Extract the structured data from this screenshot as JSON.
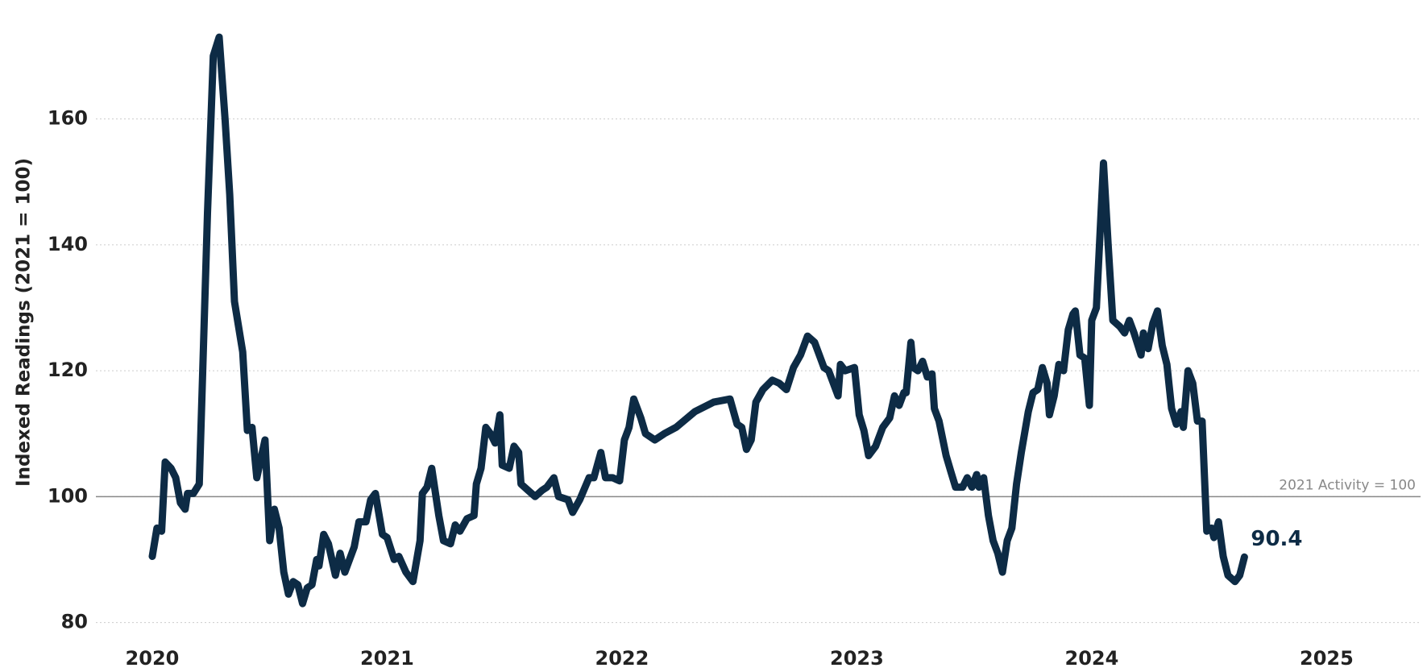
{
  "chart_data": {
    "type": "line",
    "y_label": "Indexed Readings (2021 = 100)",
    "x": [
      2020.0,
      2020.02,
      2020.04,
      2020.055,
      2020.08,
      2020.1,
      2020.12,
      2020.14,
      2020.15,
      2020.175,
      2020.2,
      2020.215,
      2020.235,
      2020.26,
      2020.285,
      2020.31,
      2020.33,
      2020.35,
      2020.385,
      2020.405,
      2020.425,
      2020.445,
      2020.48,
      2020.5,
      2020.52,
      2020.54,
      2020.56,
      2020.58,
      2020.6,
      2020.62,
      2020.64,
      2020.66,
      2020.68,
      2020.7,
      2020.71,
      2020.73,
      2020.75,
      2020.78,
      2020.8,
      2020.82,
      2020.86,
      2020.88,
      2020.91,
      2020.93,
      2020.95,
      2020.98,
      2021.0,
      2021.03,
      2021.05,
      2021.08,
      2021.11,
      2021.14,
      2021.15,
      2021.17,
      2021.19,
      2021.22,
      2021.24,
      2021.27,
      2021.29,
      2021.31,
      2021.34,
      2021.37,
      2021.38,
      2021.4,
      2021.42,
      2021.44,
      2021.46,
      2021.48,
      2021.49,
      2021.52,
      2021.54,
      2021.56,
      2021.57,
      2021.6,
      2021.63,
      2021.66,
      2021.68,
      2021.71,
      2021.73,
      2021.77,
      2021.79,
      2021.82,
      2021.86,
      2021.88,
      2021.91,
      2021.93,
      2021.96,
      2021.99,
      2022.01,
      2022.03,
      2022.05,
      2022.08,
      2022.1,
      2022.14,
      2022.18,
      2022.23,
      2022.31,
      2022.39,
      2022.46,
      2022.49,
      2022.51,
      2022.53,
      2022.55,
      2022.57,
      2022.6,
      2022.64,
      2022.67,
      2022.7,
      2022.73,
      2022.76,
      2022.79,
      2022.82,
      2022.86,
      2022.88,
      2022.92,
      2022.93,
      2022.95,
      2022.99,
      2023.01,
      2023.03,
      2023.05,
      2023.08,
      2023.11,
      2023.14,
      2023.16,
      2023.18,
      2023.2,
      2023.21,
      2023.23,
      2023.24,
      2023.26,
      2023.28,
      2023.3,
      2023.32,
      2023.33,
      2023.35,
      2023.38,
      2023.4,
      2023.42,
      2023.45,
      2023.47,
      2023.49,
      2023.51,
      2023.52,
      2023.54,
      2023.56,
      2023.58,
      2023.6,
      2023.62,
      2023.64,
      2023.66,
      2023.68,
      2023.7,
      2023.73,
      2023.75,
      2023.77,
      2023.79,
      2023.81,
      2023.82,
      2023.84,
      2023.86,
      2023.88,
      2023.9,
      2023.92,
      2023.93,
      2023.95,
      2023.97,
      2023.99,
      2024.0,
      2024.02,
      2024.05,
      2024.07,
      2024.09,
      2024.12,
      2024.14,
      2024.16,
      2024.18,
      2024.21,
      2024.22,
      2024.24,
      2024.26,
      2024.28,
      2024.3,
      2024.32,
      2024.34,
      2024.36,
      2024.38,
      2024.39,
      2024.41,
      2024.43,
      2024.45,
      2024.47,
      2024.49,
      2024.51,
      2024.52,
      2024.54,
      2024.56,
      2024.58,
      2024.61,
      2024.63,
      2024.65
    ],
    "series": [
      {
        "color": "#0d2b45",
        "values": [
          90.5,
          95,
          94.5,
          105.5,
          104.5,
          103,
          99,
          98,
          100.5,
          100.5,
          102,
          120,
          145,
          170,
          173,
          160,
          148,
          131,
          123,
          110.5,
          111,
          103,
          109,
          93,
          98,
          95,
          88,
          84.5,
          86.5,
          86,
          83,
          85.5,
          86,
          90,
          89,
          94,
          92.5,
          87.5,
          91,
          88,
          92,
          96,
          96,
          99.5,
          100.5,
          94,
          93.5,
          90,
          90.5,
          88,
          86.5,
          93,
          100.5,
          101.5,
          104.5,
          97,
          93,
          92.5,
          95.5,
          94.5,
          96.5,
          97,
          102,
          104.5,
          111,
          110,
          108.5,
          113,
          105,
          104.5,
          108,
          107,
          102,
          101,
          100,
          101,
          101.5,
          103,
          100,
          99.5,
          97.5,
          99.5,
          103,
          103,
          107,
          103,
          103,
          102.5,
          109,
          111,
          115.5,
          112.5,
          110,
          109,
          110,
          111,
          113.5,
          115,
          115.5,
          111.5,
          111,
          107.5,
          109,
          115,
          117,
          118.5,
          118,
          117,
          120.5,
          122.5,
          125.5,
          124.5,
          120.5,
          120,
          116,
          121,
          120,
          120.5,
          113,
          110.5,
          106.5,
          108,
          111,
          112.5,
          116,
          114.5,
          116.5,
          116.5,
          124.5,
          120.5,
          120,
          121.5,
          119,
          119.5,
          114,
          112,
          106.5,
          104,
          101.5,
          101.5,
          103,
          101.5,
          103.5,
          101.5,
          103,
          97,
          93,
          91,
          88,
          93,
          95,
          102,
          107,
          113.5,
          116.5,
          117,
          120.5,
          118,
          113,
          116,
          121,
          120,
          126.5,
          129,
          129.5,
          122.5,
          122,
          114.5,
          128,
          130,
          153,
          140,
          128,
          127,
          126,
          128,
          126,
          122.5,
          126,
          123.5,
          127.5,
          129.5,
          124,
          121,
          114,
          111.5,
          113.5,
          111,
          120,
          118,
          112,
          112,
          94.5,
          95,
          93.5,
          96,
          90.5,
          87.5,
          86.5,
          87.5,
          90.4
        ]
      }
    ],
    "xlim": [
      2019.76,
      2025.4
    ],
    "xticks": [
      2020,
      2021,
      2022,
      2023,
      2024,
      2025
    ],
    "ylim": [
      77,
      178
    ],
    "yticks": [
      80,
      100,
      120,
      140,
      160
    ],
    "grid": true,
    "reference": {
      "value": 100,
      "label": "2021 Activity = 100",
      "color": "#888888"
    }
  }
}
